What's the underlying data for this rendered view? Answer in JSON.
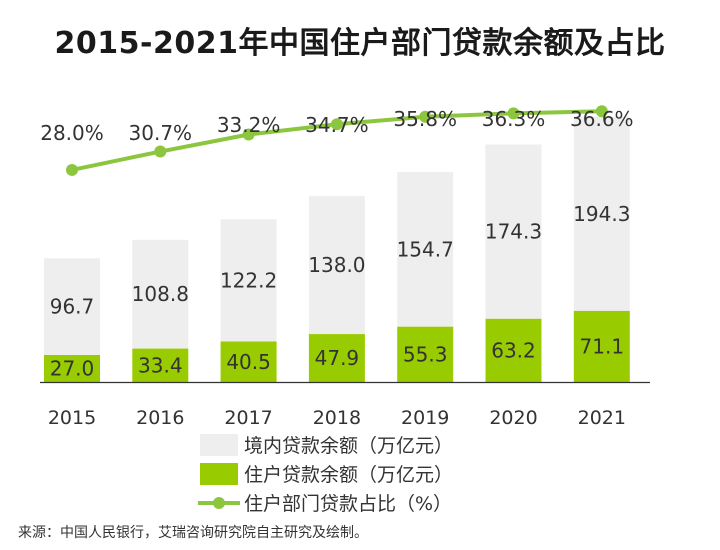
{
  "title": "2015-2021年中国住户部门贷款余额及占比",
  "source": "来源：中国人民银行，艾瑞咨询研究院自主研究及绘制。",
  "chart_data": {
    "type": "bar",
    "stacked": true,
    "categories": [
      "2015",
      "2016",
      "2017",
      "2018",
      "2019",
      "2020",
      "2021"
    ],
    "series": [
      {
        "name": "住户贷款余额（万亿元）",
        "values": [
          27.0,
          33.4,
          40.5,
          47.9,
          55.3,
          63.2,
          71.1
        ],
        "labels": [
          "27.0",
          "33.4",
          "40.5",
          "47.9",
          "55.3",
          "63.2",
          "71.1"
        ],
        "color": "#99cc00",
        "kind": "bar"
      },
      {
        "name": "境内贷款余额（万亿元）",
        "values": [
          96.7,
          108.8,
          122.2,
          138.0,
          154.7,
          174.3,
          194.3
        ],
        "labels": [
          "96.7",
          "108.8",
          "122.2",
          "138.0",
          "154.7",
          "174.3",
          "194.3"
        ],
        "color": "#eeeeee",
        "kind": "bar"
      },
      {
        "name": "住户部门贷款占比（%）",
        "values": [
          28.0,
          30.7,
          33.2,
          34.7,
          35.8,
          36.3,
          36.6
        ],
        "labels": [
          "28.0%",
          "30.7%",
          "33.2%",
          "34.7%",
          "35.8%",
          "36.3%",
          "36.6%"
        ],
        "color": "#8cc63f",
        "kind": "line"
      }
    ],
    "legend": [
      "境内贷款余额（万亿元）",
      "住户贷款余额（万亿元）",
      "住户部门贷款占比（%）"
    ],
    "legend_position": "bottom",
    "grid": false
  }
}
